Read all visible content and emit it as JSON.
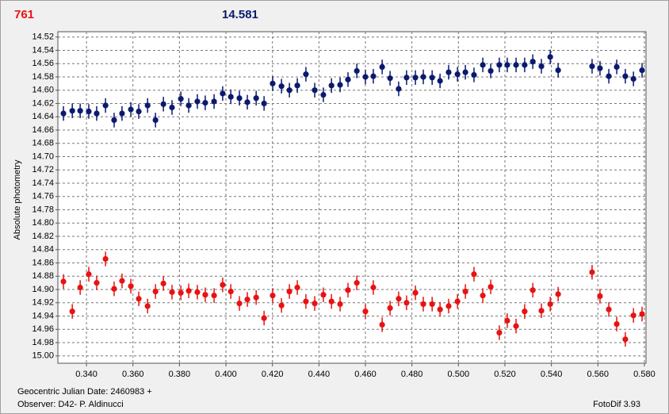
{
  "chart_data": {
    "type": "scatter",
    "header_left": "761",
    "header_right": "14.581",
    "ylabel": "Absolute photometry",
    "footer_date": "Geocentric Julian Date: 2460983 +",
    "footer_observer": "Observer: D42- P. Aldinucci",
    "footer_software": "FotoDif 3.93",
    "xlim": [
      0.3277,
      0.5807
    ],
    "ylim": [
      14.512,
      15.011
    ],
    "y_inverted": true,
    "grid": true,
    "xticks": [
      {
        "value": 0.34,
        "label": "0.340"
      },
      {
        "value": 0.36,
        "label": "0.360"
      },
      {
        "value": 0.38,
        "label": "0.380"
      },
      {
        "value": 0.4,
        "label": "0.400"
      },
      {
        "value": 0.42,
        "label": "0.420"
      },
      {
        "value": 0.44,
        "label": "0.440"
      },
      {
        "value": 0.46,
        "label": "0.460"
      },
      {
        "value": 0.48,
        "label": "0.480"
      },
      {
        "value": 0.5,
        "label": "0.500"
      },
      {
        "value": 0.52,
        "label": "0.520"
      },
      {
        "value": 0.54,
        "label": "0.540"
      },
      {
        "value": 0.56,
        "label": "0.560"
      },
      {
        "value": 0.58,
        "label": "0.580"
      }
    ],
    "yticks": [
      14.52,
      14.54,
      14.56,
      14.58,
      {
        "value": 14.6,
        "label": "14.60"
      },
      14.62,
      14.64,
      14.66,
      14.68,
      {
        "value": 14.7,
        "label": "14.70"
      },
      14.72,
      14.74,
      14.76,
      14.78,
      {
        "value": 14.8,
        "label": "14.80"
      },
      14.82,
      14.84,
      14.86,
      14.88,
      {
        "value": 14.9,
        "label": "14.90"
      },
      14.92,
      14.94,
      14.96,
      14.98,
      {
        "value": 15,
        "label": "15.00"
      }
    ],
    "x": [
      0.3301,
      0.3339,
      0.3373,
      0.341,
      0.3444,
      0.3482,
      0.3519,
      0.3553,
      0.3591,
      0.3625,
      0.3663,
      0.3697,
      0.3731,
      0.3768,
      0.3806,
      0.384,
      0.3877,
      0.3911,
      0.3949,
      0.3986,
      0.4021,
      0.4058,
      0.4092,
      0.413,
      0.4164,
      0.4201,
      0.4239,
      0.4273,
      0.4307,
      0.4344,
      0.4382,
      0.4419,
      0.4454,
      0.4491,
      0.4525,
      0.4563,
      0.46,
      0.4634,
      0.4672,
      0.4706,
      0.4743,
      0.4777,
      0.4815,
      0.4849,
      0.4887,
      0.4921,
      0.4958,
      0.4996,
      0.503,
      0.5067,
      0.5105,
      0.5139,
      0.5176,
      0.521,
      0.5248,
      0.5285,
      0.532,
      0.5357,
      0.5395,
      0.5429,
      0.5575,
      0.5609,
      0.5647,
      0.5681,
      0.5718,
      0.5753,
      0.579
    ],
    "series": [
      {
        "color": "#0b1a6e",
        "error": 0.011,
        "values": [
          14.635,
          14.631,
          14.631,
          14.632,
          14.635,
          14.623,
          14.645,
          14.635,
          14.629,
          14.632,
          14.623,
          14.645,
          14.621,
          14.626,
          14.613,
          14.623,
          14.617,
          14.619,
          14.617,
          14.605,
          14.61,
          14.612,
          14.618,
          14.612,
          14.62,
          14.59,
          14.594,
          14.6,
          14.593,
          14.576,
          14.6,
          14.607,
          14.593,
          14.592,
          14.584,
          14.571,
          14.58,
          14.579,
          14.565,
          14.582,
          14.598,
          14.581,
          14.581,
          14.58,
          14.581,
          14.586,
          14.573,
          14.576,
          14.573,
          14.577,
          14.562,
          14.571,
          14.562,
          14.562,
          14.562,
          14.562,
          14.557,
          14.564,
          14.55,
          14.57,
          14.564,
          14.567,
          14.579,
          14.565,
          14.579,
          14.583,
          14.57
        ]
      },
      {
        "color": "#e81212",
        "error": 0.011,
        "values": [
          14.888,
          14.933,
          14.897,
          14.877,
          14.89,
          14.854,
          14.899,
          14.887,
          14.895,
          14.914,
          14.925,
          14.903,
          14.891,
          14.904,
          14.905,
          14.902,
          14.904,
          14.908,
          14.909,
          14.893,
          14.903,
          14.921,
          14.915,
          14.912,
          14.943,
          14.909,
          14.924,
          14.903,
          14.897,
          14.918,
          14.921,
          14.908,
          14.918,
          14.922,
          14.901,
          14.89,
          14.933,
          14.897,
          14.953,
          14.928,
          14.914,
          14.92,
          14.905,
          14.922,
          14.922,
          14.93,
          14.925,
          14.918,
          14.903,
          14.877,
          14.909,
          14.896,
          14.965,
          14.947,
          14.955,
          14.933,
          14.901,
          14.932,
          14.922,
          14.907,
          14.874,
          14.91,
          14.93,
          14.952,
          14.975,
          14.939,
          14.937
        ]
      }
    ]
  }
}
